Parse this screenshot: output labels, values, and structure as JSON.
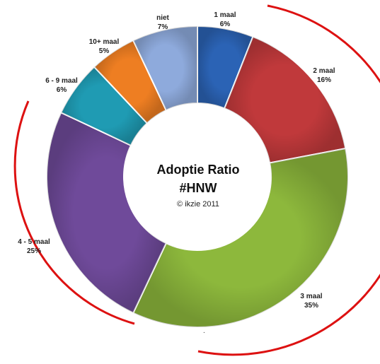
{
  "chart_data": {
    "type": "pie",
    "variant": "donut",
    "title": "Adoptie Ratio",
    "subtitle": "#HNW",
    "credit": "© ikzie 2011",
    "categories": [
      "1 maal",
      "2 maal",
      "3 maal",
      "4 - 5 maal",
      "6 - 9 maal",
      "10+ maal",
      "niet"
    ],
    "values": [
      6,
      16,
      35,
      25,
      6,
      5,
      7
    ],
    "value_labels": [
      "6%",
      "16%",
      "35%",
      "25%",
      "6%",
      "5%",
      "7%"
    ],
    "colors": [
      "#2b63b5",
      "#c0393b",
      "#8db83c",
      "#6f4a9a",
      "#1f9bb3",
      "#ee7e22",
      "#8eaadc"
    ],
    "legend": "none",
    "decorations": {
      "outer_arc_color": "#dd1111",
      "stray_mark": "."
    }
  }
}
